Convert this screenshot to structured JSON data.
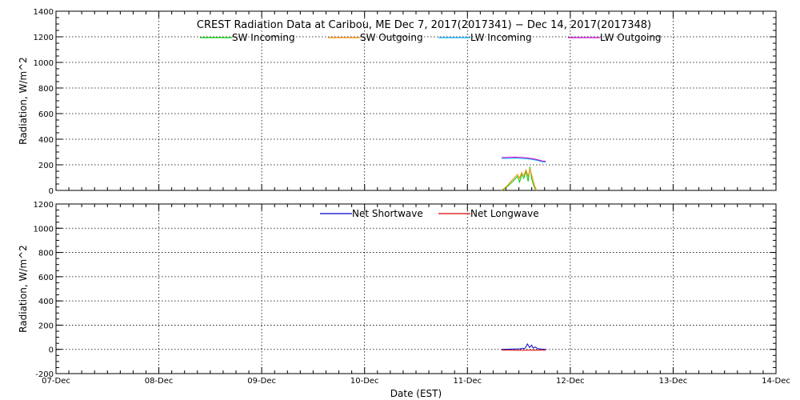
{
  "chart_data": [
    {
      "type": "line",
      "title": "CREST Radiation Data at Caribou, ME   Dec  7, 2017(2017341) − Dec 14, 2017(2017348)",
      "ylabel": "Radiation, W/m^2",
      "xlabel": "",
      "xlim": [
        "2017-12-07",
        "2017-12-14"
      ],
      "ylim": [
        0,
        1400
      ],
      "yticks": [
        0,
        200,
        400,
        600,
        800,
        1000,
        1200,
        1400
      ],
      "grid": true,
      "legend_position": "top",
      "series": [
        {
          "name": "SW Incoming",
          "color": "#00cc00",
          "x": [
            "2017-12-11 08:00",
            "2017-12-11 08:45",
            "2017-12-11 09:30",
            "2017-12-11 10:15",
            "2017-12-11 11:00",
            "2017-12-11 11:40",
            "2017-12-11 12:10",
            "2017-12-11 12:40",
            "2017-12-11 13:10",
            "2017-12-11 13:40",
            "2017-12-11 14:10",
            "2017-12-11 14:35",
            "2017-12-11 15:00",
            "2017-12-11 15:20",
            "2017-12-11 15:40",
            "2017-12-11 16:10"
          ],
          "y": [
            0,
            15,
            35,
            60,
            85,
            110,
            65,
            125,
            95,
            150,
            70,
            185,
            90,
            50,
            20,
            0
          ]
        },
        {
          "name": "SW Outgoing",
          "color": "#ff8800",
          "x": [
            "2017-12-11 08:00",
            "2017-12-11 08:45",
            "2017-12-11 09:30",
            "2017-12-11 10:15",
            "2017-12-11 11:00",
            "2017-12-11 11:40",
            "2017-12-11 12:10",
            "2017-12-11 12:40",
            "2017-12-11 13:10",
            "2017-12-11 13:40",
            "2017-12-11 14:10",
            "2017-12-11 14:35",
            "2017-12-11 15:00",
            "2017-12-11 15:20",
            "2017-12-11 15:40",
            "2017-12-11 16:10"
          ],
          "y": [
            0,
            20,
            45,
            75,
            100,
            125,
            95,
            140,
            115,
            160,
            110,
            170,
            120,
            80,
            35,
            0
          ]
        },
        {
          "name": "LW Incoming",
          "color": "#00aaff",
          "x": [
            "2017-12-11 08:00",
            "2017-12-11 09:30",
            "2017-12-11 11:00",
            "2017-12-11 12:30",
            "2017-12-11 14:00",
            "2017-12-11 15:30",
            "2017-12-11 16:30",
            "2017-12-11 17:30",
            "2017-12-11 18:15"
          ],
          "y": [
            250,
            250,
            251,
            250,
            247,
            240,
            232,
            224,
            220
          ]
        },
        {
          "name": "LW Outgoing",
          "color": "#cc00cc",
          "x": [
            "2017-12-11 08:00",
            "2017-12-11 09:30",
            "2017-12-11 11:00",
            "2017-12-11 12:30",
            "2017-12-11 14:00",
            "2017-12-11 15:30",
            "2017-12-11 16:30",
            "2017-12-11 17:30",
            "2017-12-11 18:15"
          ],
          "y": [
            257,
            258,
            260,
            258,
            254,
            247,
            238,
            230,
            228
          ]
        }
      ]
    },
    {
      "type": "line",
      "title": "",
      "ylabel": "Radiation, W/m^2",
      "xlabel": "Date (EST)",
      "xlim": [
        "2017-12-07",
        "2017-12-14"
      ],
      "ylim": [
        -200,
        1200
      ],
      "yticks": [
        -200,
        0,
        200,
        400,
        600,
        800,
        1000,
        1200
      ],
      "xtick_labels": [
        "07-Dec",
        "08-Dec",
        "09-Dec",
        "10-Dec",
        "11-Dec",
        "12-Dec",
        "13-Dec",
        "14-Dec"
      ],
      "grid": true,
      "legend_position": "top",
      "series": [
        {
          "name": "Net Shortwave",
          "color": "#0000cc",
          "x": [
            "2017-12-11 08:00",
            "2017-12-11 10:00",
            "2017-12-11 12:00",
            "2017-12-11 13:30",
            "2017-12-11 14:00",
            "2017-12-11 14:30",
            "2017-12-11 15:00",
            "2017-12-11 15:20",
            "2017-12-11 15:45",
            "2017-12-11 16:30",
            "2017-12-11 18:15"
          ],
          "y": [
            0,
            2,
            4,
            10,
            45,
            15,
            35,
            10,
            20,
            5,
            0
          ]
        },
        {
          "name": "Net Longwave",
          "color": "#dd0000",
          "x": [
            "2017-12-11 08:00",
            "2017-12-11 10:00",
            "2017-12-11 12:00",
            "2017-12-11 14:00",
            "2017-12-11 16:00",
            "2017-12-11 18:15"
          ],
          "y": [
            -6,
            -7,
            -8,
            -7,
            -6,
            -8
          ]
        }
      ]
    }
  ]
}
